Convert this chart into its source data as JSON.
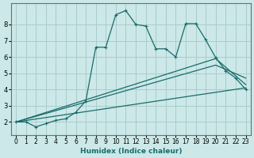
{
  "xlabel": "Humidex (Indice chaleur)",
  "bg_color": "#cce8e8",
  "grid_color": "#aacccc",
  "line_color": "#1a6b6b",
  "xlim": [
    -0.5,
    23.5
  ],
  "ylim": [
    1.2,
    9.3
  ],
  "yticks": [
    2,
    3,
    4,
    5,
    6,
    7,
    8
  ],
  "xticks": [
    0,
    1,
    2,
    3,
    4,
    5,
    6,
    7,
    8,
    9,
    10,
    11,
    12,
    13,
    14,
    15,
    16,
    17,
    18,
    19,
    20,
    21,
    22,
    23
  ],
  "curve1_x": [
    0,
    1,
    2,
    3,
    4,
    5,
    6,
    7,
    8,
    9,
    10,
    11,
    12,
    13,
    14,
    15,
    16,
    17,
    18,
    19,
    20,
    21,
    22,
    23
  ],
  "curve1_y": [
    2.0,
    2.0,
    1.7,
    1.9,
    2.1,
    2.2,
    2.6,
    3.3,
    6.6,
    6.6,
    8.6,
    8.85,
    8.0,
    7.9,
    6.5,
    6.5,
    6.0,
    8.05,
    8.05,
    7.05,
    5.95,
    5.15,
    4.7,
    4.0
  ],
  "curve2_x": [
    0,
    23
  ],
  "curve2_y": [
    2.0,
    4.1
  ],
  "curve3_x": [
    0,
    20,
    23
  ],
  "curve3_y": [
    2.0,
    5.5,
    4.7
  ],
  "curve4_x": [
    0,
    20,
    23
  ],
  "curve4_y": [
    2.0,
    5.9,
    4.3
  ]
}
